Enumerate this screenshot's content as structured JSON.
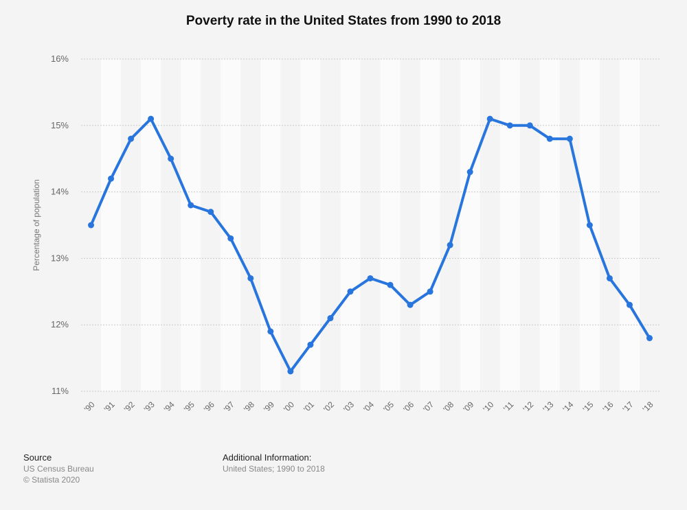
{
  "chart_data": {
    "type": "line",
    "title": "Poverty rate in the United States from 1990 to 2018",
    "ylabel": "Percentage of population",
    "xlabel": "",
    "ylim": [
      11,
      16
    ],
    "yticks": [
      "11%",
      "12%",
      "13%",
      "14%",
      "15%",
      "16%"
    ],
    "categories": [
      "'90",
      "'91",
      "'92",
      "'93",
      "'94",
      "'95",
      "'96",
      "'97",
      "'98",
      "'99",
      "'00",
      "'01",
      "'02",
      "'03",
      "'04",
      "'05",
      "'06",
      "'07",
      "'08",
      "'09",
      "'10",
      "'11",
      "'12",
      "'13",
      "'14",
      "'15",
      "'16",
      "'17",
      "'18"
    ],
    "series": [
      {
        "values": [
          13.5,
          14.2,
          14.8,
          15.1,
          14.5,
          13.8,
          13.7,
          13.3,
          12.7,
          11.9,
          11.3,
          11.7,
          12.1,
          12.5,
          12.7,
          12.6,
          12.3,
          12.5,
          13.2,
          14.3,
          15.1,
          15.0,
          15.0,
          14.8,
          14.8,
          13.5,
          12.7,
          12.3,
          11.8
        ]
      }
    ],
    "grid": true,
    "line_color": "#2876dd"
  },
  "footer": {
    "source_heading": "Source",
    "source_line1": "US Census Bureau",
    "source_line2": "© Statista 2020",
    "info_heading": "Additional Information:",
    "info_line": "United States; 1990 to 2018"
  }
}
